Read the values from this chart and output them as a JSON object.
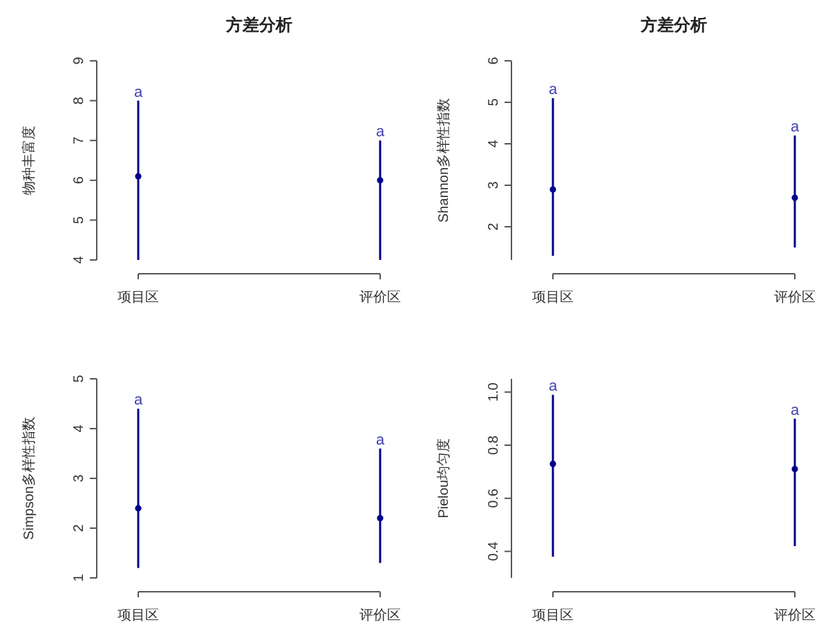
{
  "chart_data": [
    {
      "type": "scatter",
      "title": "方差分析",
      "ylabel": "物种丰富度",
      "categories": [
        "项目区",
        "评价区"
      ],
      "marker": "circle",
      "ylim": [
        4,
        9
      ],
      "yticks": [
        4,
        5,
        6,
        7,
        8,
        9
      ],
      "series": [
        {
          "color": "#00008b",
          "values": [
            6.1,
            6.0
          ],
          "errors": [
            [
              4.0,
              8.0
            ],
            [
              4.0,
              7.0
            ]
          ]
        }
      ],
      "annotations": [
        "a",
        "a"
      ]
    },
    {
      "type": "scatter",
      "title": "方差分析",
      "ylabel": "Shannon多样性指数",
      "categories": [
        "项目区",
        "评价区"
      ],
      "marker": "circle",
      "ylim": [
        1.2,
        6
      ],
      "yticks": [
        2,
        3,
        4,
        5,
        6
      ],
      "series": [
        {
          "color": "#00008b",
          "values": [
            2.9,
            2.7
          ],
          "errors": [
            [
              1.3,
              5.1
            ],
            [
              1.5,
              4.2
            ]
          ]
        }
      ],
      "annotations": [
        "a",
        "a"
      ]
    },
    {
      "type": "scatter",
      "ylabel": "Simpson多样性指数",
      "categories": [
        "项目区",
        "评价区"
      ],
      "marker": "circle",
      "ylim": [
        1,
        5
      ],
      "yticks": [
        1,
        2,
        3,
        4,
        5
      ],
      "series": [
        {
          "color": "#00008b",
          "values": [
            2.4,
            2.2
          ],
          "errors": [
            [
              1.2,
              4.4
            ],
            [
              1.3,
              3.6
            ]
          ]
        }
      ],
      "annotations": [
        "a",
        "a"
      ]
    },
    {
      "type": "scatter",
      "ylabel": "Pielou均匀度",
      "categories": [
        "项目区",
        "评价区"
      ],
      "marker": "circle",
      "ylim": [
        0.3,
        1.05
      ],
      "yticks": [
        {
          "value": 0.4,
          "label": "0.4"
        },
        {
          "value": 0.6,
          "label": "0.6"
        },
        {
          "value": 0.8,
          "label": "0.8"
        },
        {
          "value": 1,
          "label": "1.0"
        }
      ],
      "series": [
        {
          "color": "#00008b",
          "values": [
            0.73,
            0.71
          ],
          "errors": [
            [
              0.38,
              0.99
            ],
            [
              0.42,
              0.9
            ]
          ]
        }
      ],
      "annotations": [
        "a",
        "a"
      ]
    }
  ]
}
